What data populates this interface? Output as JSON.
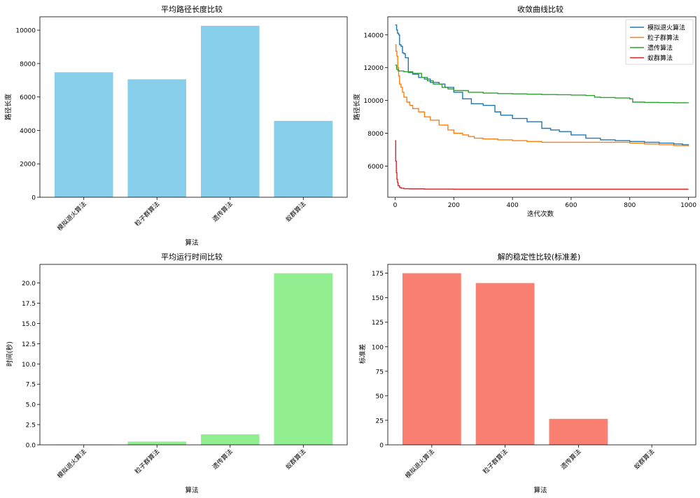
{
  "chart_data": [
    {
      "type": "bar",
      "title": "平均路径长度比较",
      "xlabel": "算法",
      "ylabel": "路径长度",
      "categories": [
        "模拟退火算法",
        "粒子群算法",
        "遗传算法",
        "蚁群算法"
      ],
      "values": [
        7480,
        7060,
        10260,
        4570
      ],
      "ylim": [
        0,
        10800
      ],
      "yticks": [
        0,
        2000,
        4000,
        6000,
        8000,
        10000
      ],
      "ytick_labels": [
        "0",
        "2000",
        "4000",
        "6000",
        "8000",
        "10000"
      ],
      "color": "#87CEEB"
    },
    {
      "type": "line",
      "title": "收敛曲线比较",
      "xlabel": "迭代次数",
      "ylabel": "路径长度",
      "xlim": [
        -25,
        1025
      ],
      "ylim": [
        4100,
        15100
      ],
      "xticks": [
        0,
        200,
        400,
        600,
        800,
        1000
      ],
      "xtick_labels": [
        "0",
        "200",
        "400",
        "600",
        "800",
        "1000"
      ],
      "yticks": [
        6000,
        8000,
        10000,
        12000,
        14000
      ],
      "ytick_labels": [
        "6000",
        "8000",
        "10000",
        "12000",
        "14000"
      ],
      "legend_position": "top-right",
      "series": [
        {
          "name": "模拟退火算法",
          "color": "#1f77b4",
          "x": [
            0,
            5,
            8,
            12,
            15,
            20,
            25,
            30,
            35,
            45,
            60,
            80,
            100,
            120,
            150,
            170,
            200,
            230,
            260,
            300,
            340,
            360,
            400,
            450,
            500,
            530,
            560,
            600,
            650,
            700,
            750,
            800,
            850,
            900,
            950,
            980,
            1000
          ],
          "y": [
            14600,
            14300,
            14100,
            14000,
            13400,
            13300,
            12900,
            12850,
            12600,
            11700,
            11600,
            11400,
            11300,
            11100,
            11000,
            10800,
            10500,
            10100,
            9800,
            9700,
            9300,
            9100,
            8900,
            8700,
            8300,
            8200,
            8100,
            7900,
            7700,
            7600,
            7550,
            7500,
            7450,
            7400,
            7350,
            7300,
            7250
          ]
        },
        {
          "name": "粒子群算法",
          "color": "#ff7f0e",
          "x": [
            0,
            3,
            6,
            9,
            12,
            15,
            20,
            25,
            30,
            40,
            50,
            60,
            80,
            100,
            120,
            150,
            180,
            200,
            230,
            250,
            270,
            300,
            350,
            400,
            450,
            500,
            600,
            700,
            800,
            850,
            900,
            950,
            1000
          ],
          "y": [
            13400,
            13000,
            12700,
            12000,
            11500,
            11000,
            10800,
            10500,
            10200,
            9900,
            9700,
            9500,
            9300,
            9000,
            8800,
            8500,
            8200,
            8000,
            7900,
            7800,
            7700,
            7650,
            7600,
            7550,
            7500,
            7450,
            7450,
            7450,
            7400,
            7350,
            7300,
            7250,
            7200
          ]
        },
        {
          "name": "遗传算法",
          "color": "#2ca02c",
          "x": [
            0,
            5,
            10,
            30,
            60,
            90,
            110,
            130,
            160,
            180,
            200,
            250,
            300,
            350,
            400,
            450,
            500,
            550,
            600,
            650,
            680,
            700,
            750,
            800,
            810,
            850,
            900,
            950,
            1000
          ],
          "y": [
            12150,
            11900,
            11800,
            11750,
            11650,
            11400,
            11200,
            11000,
            10800,
            10700,
            10600,
            10500,
            10450,
            10420,
            10400,
            10380,
            10360,
            10350,
            10330,
            10300,
            10200,
            10180,
            10150,
            10100,
            9900,
            9880,
            9870,
            9860,
            9850
          ]
        },
        {
          "name": "蚁群算法",
          "color": "#d62728",
          "x": [
            0,
            2,
            4,
            6,
            8,
            10,
            15,
            20,
            30,
            50,
            100,
            200,
            400,
            600,
            800,
            1000
          ],
          "y": [
            7550,
            6300,
            5600,
            5200,
            5000,
            4800,
            4700,
            4650,
            4620,
            4610,
            4600,
            4590,
            4590,
            4590,
            4590,
            4590
          ]
        }
      ]
    },
    {
      "type": "bar",
      "title": "平均运行时间比较",
      "xlabel": "算法",
      "ylabel": "时间(秒)",
      "categories": [
        "模拟退火算法",
        "粒子群算法",
        "遗传算法",
        "蚁群算法"
      ],
      "values": [
        0.05,
        0.4,
        1.3,
        21.2
      ],
      "ylim": [
        0,
        22.3
      ],
      "yticks": [
        0,
        2.5,
        5,
        7.5,
        10,
        12.5,
        15,
        17.5,
        20
      ],
      "ytick_labels": [
        "0.0",
        "2.5",
        "5.0",
        "7.5",
        "10.0",
        "12.5",
        "15.0",
        "17.5",
        "20.0"
      ],
      "color": "#90EE90"
    },
    {
      "type": "bar",
      "title": "解的稳定性比较(标准差)",
      "xlabel": "算法",
      "ylabel": "标准差",
      "categories": [
        "模拟退火算法",
        "粒子群算法",
        "遗传算法",
        "蚁群算法"
      ],
      "values": [
        175,
        165,
        26.5,
        0
      ],
      "ylim": [
        0,
        184
      ],
      "yticks": [
        0,
        25,
        50,
        75,
        100,
        125,
        150,
        175
      ],
      "ytick_labels": [
        "0",
        "25",
        "50",
        "75",
        "100",
        "125",
        "150",
        "175"
      ],
      "color": "#FA8072"
    }
  ]
}
